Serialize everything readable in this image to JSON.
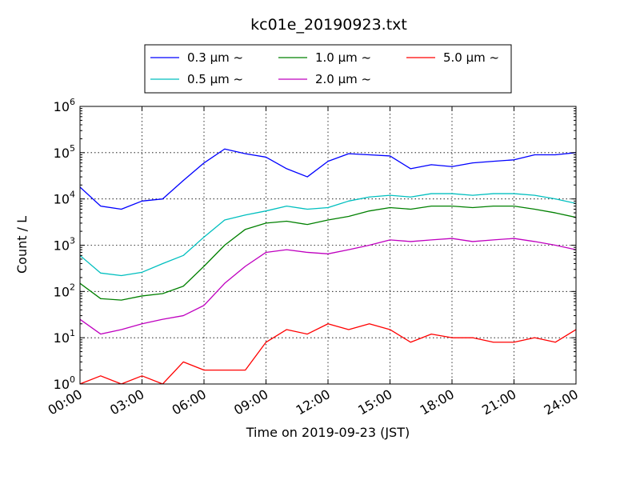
{
  "chart_data": {
    "type": "line",
    "title": "kc01e_20190923.txt",
    "xlabel": "Time on 2019-09-23 (JST)",
    "ylabel": "Count / L",
    "x_scale": "time",
    "y_scale": "log",
    "xlim": [
      "00:00",
      "24:00"
    ],
    "ylim": [
      1,
      1000000
    ],
    "x_ticks": [
      "00:00",
      "03:00",
      "06:00",
      "09:00",
      "12:00",
      "15:00",
      "18:00",
      "21:00",
      "24:00"
    ],
    "y_ticks": [
      {
        "base": "10",
        "exp": "0"
      },
      {
        "base": "10",
        "exp": "1"
      },
      {
        "base": "10",
        "exp": "2"
      },
      {
        "base": "10",
        "exp": "3"
      },
      {
        "base": "10",
        "exp": "4"
      },
      {
        "base": "10",
        "exp": "5"
      },
      {
        "base": "10",
        "exp": "6"
      }
    ],
    "grid": true,
    "legend_position": "top-center",
    "x": [
      "00:00",
      "01:00",
      "02:00",
      "03:00",
      "04:00",
      "05:00",
      "06:00",
      "07:00",
      "08:00",
      "09:00",
      "10:00",
      "11:00",
      "12:00",
      "13:00",
      "14:00",
      "15:00",
      "16:00",
      "17:00",
      "18:00",
      "19:00",
      "20:00",
      "21:00",
      "22:00",
      "23:00",
      "24:00"
    ],
    "series": [
      {
        "name": "0.3 μm ~",
        "color": "#0000ff",
        "values": [
          18000,
          7000,
          6000,
          9000,
          10000,
          25000,
          60000,
          120000,
          95000,
          80000,
          45000,
          30000,
          65000,
          95000,
          90000,
          85000,
          45000,
          55000,
          50000,
          60000,
          65000,
          70000,
          90000,
          90000,
          100000
        ]
      },
      {
        "name": "0.5 μm ~",
        "color": "#00bfbf",
        "values": [
          600,
          250,
          220,
          260,
          400,
          600,
          1500,
          3500,
          4500,
          5500,
          7000,
          6000,
          6500,
          9000,
          11000,
          12000,
          11000,
          13000,
          13000,
          12000,
          13000,
          13000,
          12000,
          10000,
          8000
        ]
      },
      {
        "name": "1.0 μm ~",
        "color": "#008000",
        "values": [
          150,
          70,
          65,
          80,
          90,
          130,
          350,
          1000,
          2200,
          3000,
          3300,
          2800,
          3500,
          4200,
          5500,
          6500,
          6000,
          7000,
          7000,
          6500,
          7000,
          7000,
          6000,
          5000,
          4000
        ]
      },
      {
        "name": "2.0 μm ~",
        "color": "#bf00bf",
        "values": [
          25,
          12,
          15,
          20,
          25,
          30,
          50,
          150,
          350,
          700,
          800,
          700,
          650,
          800,
          1000,
          1300,
          1200,
          1300,
          1400,
          1200,
          1300,
          1400,
          1200,
          1000,
          800
        ]
      },
      {
        "name": "5.0 μm ~",
        "color": "#ff0000",
        "values": [
          1,
          1.5,
          1,
          1.5,
          1,
          3,
          2,
          2,
          2,
          8,
          15,
          12,
          20,
          15,
          20,
          15,
          8,
          12,
          10,
          10,
          8,
          8,
          10,
          8,
          15
        ]
      }
    ]
  }
}
